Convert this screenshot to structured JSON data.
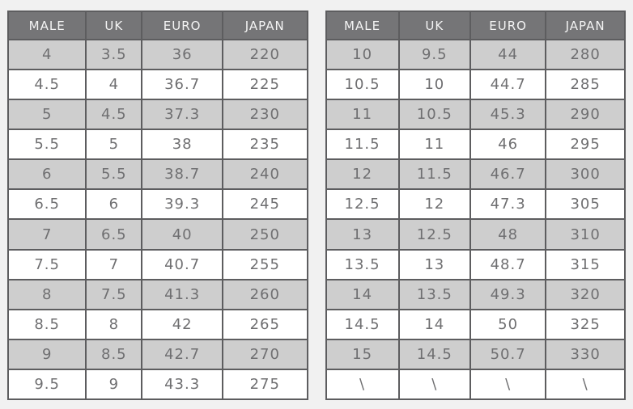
{
  "page": {
    "background_color": "#f1f1f1"
  },
  "colors": {
    "header_bg": "#757577",
    "header_text": "#f4f4f4",
    "row_alt_bg": "#cecece",
    "row_bg": "#ffffff",
    "cell_text": "#6f6f71",
    "border": "#5d5d5f"
  },
  "tables": [
    {
      "name": "size-chart-left",
      "headers": [
        "MALE",
        "UK",
        "EURO",
        "JAPAN"
      ],
      "rows": [
        [
          "4",
          "3.5",
          "36",
          "220"
        ],
        [
          "4.5",
          "4",
          "36.7",
          "225"
        ],
        [
          "5",
          "4.5",
          "37.3",
          "230"
        ],
        [
          "5.5",
          "5",
          "38",
          "235"
        ],
        [
          "6",
          "5.5",
          "38.7",
          "240"
        ],
        [
          "6.5",
          "6",
          "39.3",
          "245"
        ],
        [
          "7",
          "6.5",
          "40",
          "250"
        ],
        [
          "7.5",
          "7",
          "40.7",
          "255"
        ],
        [
          "8",
          "7.5",
          "41.3",
          "260"
        ],
        [
          "8.5",
          "8",
          "42",
          "265"
        ],
        [
          "9",
          "8.5",
          "42.7",
          "270"
        ],
        [
          "9.5",
          "9",
          "43.3",
          "275"
        ]
      ]
    },
    {
      "name": "size-chart-right",
      "headers": [
        "MALE",
        "UK",
        "EURO",
        "JAPAN"
      ],
      "rows": [
        [
          "10",
          "9.5",
          "44",
          "280"
        ],
        [
          "10.5",
          "10",
          "44.7",
          "285"
        ],
        [
          "11",
          "10.5",
          "45.3",
          "290"
        ],
        [
          "11.5",
          "11",
          "46",
          "295"
        ],
        [
          "12",
          "11.5",
          "46.7",
          "300"
        ],
        [
          "12.5",
          "12",
          "47.3",
          "305"
        ],
        [
          "13",
          "12.5",
          "48",
          "310"
        ],
        [
          "13.5",
          "13",
          "48.7",
          "315"
        ],
        [
          "14",
          "13.5",
          "49.3",
          "320"
        ],
        [
          "14.5",
          "14",
          "50",
          "325"
        ],
        [
          "15",
          "14.5",
          "50.7",
          "330"
        ],
        [
          "\\",
          "\\",
          "\\",
          "\\"
        ]
      ]
    }
  ]
}
